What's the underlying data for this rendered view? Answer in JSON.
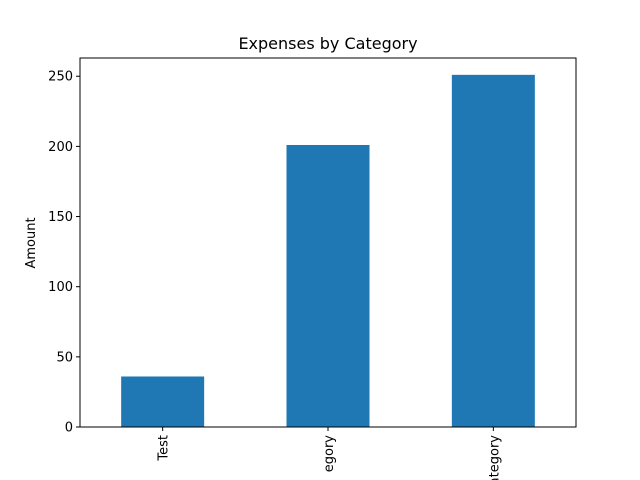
{
  "chart_data": {
    "type": "bar",
    "title": "Expenses by Category",
    "xlabel": "",
    "ylabel": "Amount",
    "categories": [
      "Test",
      "egory",
      "ategory"
    ],
    "values": [
      36,
      201,
      251
    ],
    "ylim": [
      0,
      263
    ],
    "yticks": [
      0,
      50,
      100,
      150,
      200,
      250
    ],
    "grid": false,
    "legend": "none",
    "bar_color": "#1f77b4",
    "x_tick_rotation": 90
  }
}
